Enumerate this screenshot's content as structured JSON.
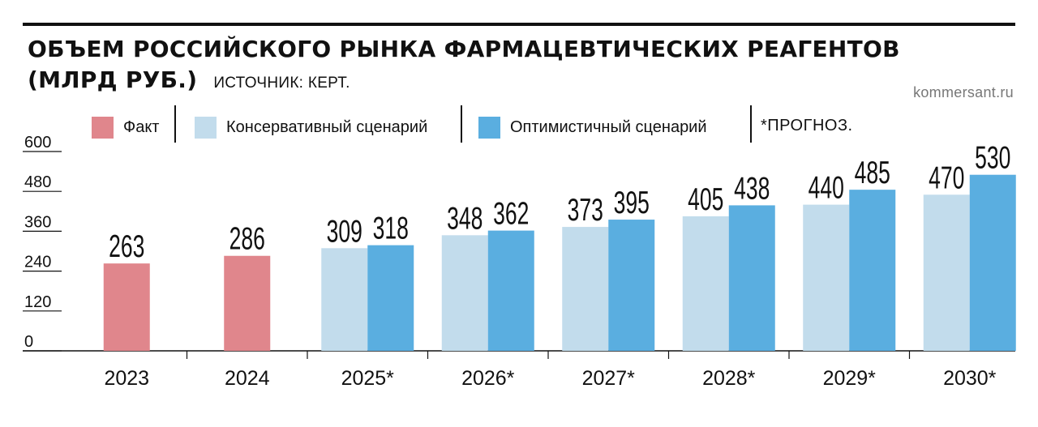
{
  "header": {
    "title_line1": "ОБЪЕМ РОССИЙСКОГО РЫНКА ФАРМАЦЕВТИЧЕСКИХ РЕАГЕНТОВ",
    "title_line2": "(МЛРД РУБ.)",
    "source": "ИСТОЧНИК: КЕРТ.",
    "credit": "kommersant.ru"
  },
  "legend": {
    "fact": "Факт",
    "conservative": "Консервативный сценарий",
    "optimistic": "Оптимистичный сценарий",
    "note": "*ПРОГНОЗ."
  },
  "colors": {
    "fact": "#e0868c",
    "conservative": "#c2dcec",
    "optimistic": "#5aaee0"
  },
  "chart_data": {
    "type": "bar",
    "title": "ОБЪЕМ РОССИЙСКОГО РЫНКА ФАРМАЦЕВТИЧЕСКИХ РЕАГЕНТОВ (МЛРД РУБ.)",
    "categories": [
      "2023",
      "2024",
      "2025*",
      "2026*",
      "2027*",
      "2028*",
      "2029*",
      "2030*"
    ],
    "series": [
      {
        "name": "Факт",
        "values": [
          263,
          286,
          null,
          null,
          null,
          null,
          null,
          null
        ]
      },
      {
        "name": "Консервативный сценарий",
        "values": [
          null,
          null,
          309,
          348,
          373,
          405,
          440,
          470
        ]
      },
      {
        "name": "Оптимистичный сценарий",
        "values": [
          null,
          null,
          318,
          362,
          395,
          438,
          485,
          530
        ]
      }
    ],
    "yticks": [
      0,
      120,
      240,
      360,
      480,
      600
    ],
    "ylim": [
      0,
      600
    ],
    "xlabel": "",
    "ylabel": "",
    "legend": "top",
    "grid": false,
    "data_labels": true
  }
}
